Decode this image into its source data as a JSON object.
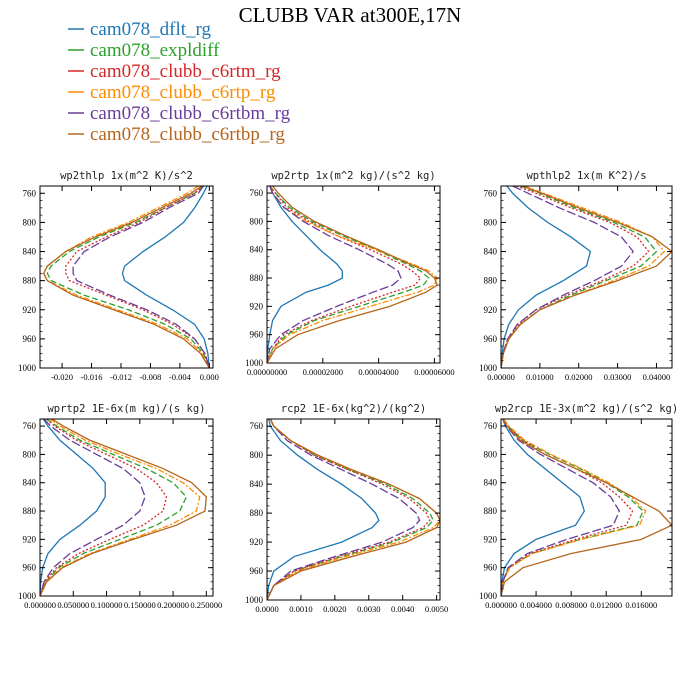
{
  "figure": {
    "title": "CLUBB VAR at300E,17N"
  },
  "legend": [
    {
      "name": "cam078_dflt_rg",
      "color": "#1f77b4",
      "dash": "solid"
    },
    {
      "name": "cam078_expldiff",
      "color": "#2ca02c",
      "dash": "dash"
    },
    {
      "name": "cam078_clubb_c6rtm_rg",
      "color": "#d62728",
      "dash": "dot"
    },
    {
      "name": "cam078_clubb_c6rtp_rg",
      "color": "#ff8c00",
      "dash": "dashdot"
    },
    {
      "name": "cam078_clubb_c6rtbm_rg",
      "color": "#6a3d9a",
      "dash": "longdash"
    },
    {
      "name": "cam078_clubb_c6rtbp_rg",
      "color": "#b5651d",
      "dash": "solid"
    }
  ],
  "chart_data": [
    {
      "type": "line",
      "title": "wp2thlp  1x(m^2 K)/s^2",
      "xlim": [
        -0.023,
        0.0005
      ],
      "ylim": [
        1000,
        750
      ],
      "xticks": [
        -0.02,
        -0.016,
        -0.012,
        -0.008,
        -0.004,
        0.0
      ],
      "xticklabels": [
        "-0.020",
        "-0.016",
        "-0.012",
        "-0.008",
        "-0.004",
        "0.000"
      ],
      "yticks": [
        760,
        800,
        840,
        880,
        920,
        960,
        1000
      ],
      "y": [
        750,
        760,
        780,
        800,
        820,
        840,
        860,
        870,
        880,
        900,
        920,
        940,
        960,
        980,
        1000
      ],
      "series": [
        {
          "values": [
            -0.0003,
            -0.0008,
            -0.002,
            -0.0035,
            -0.006,
            -0.009,
            -0.0115,
            -0.0118,
            -0.0115,
            -0.0085,
            -0.005,
            -0.002,
            -0.0007,
            -0.0002,
            0.0
          ]
        },
        {
          "values": [
            -0.0008,
            -0.002,
            -0.006,
            -0.01,
            -0.015,
            -0.019,
            -0.0215,
            -0.022,
            -0.0215,
            -0.017,
            -0.011,
            -0.006,
            -0.0025,
            -0.0008,
            0.0
          ]
        },
        {
          "values": [
            -0.0008,
            -0.002,
            -0.006,
            -0.0095,
            -0.014,
            -0.018,
            -0.0195,
            -0.0195,
            -0.019,
            -0.014,
            -0.009,
            -0.005,
            -0.002,
            -0.0006,
            0.0
          ]
        },
        {
          "values": [
            -0.0015,
            -0.003,
            -0.007,
            -0.011,
            -0.016,
            -0.0195,
            -0.022,
            -0.0225,
            -0.022,
            -0.018,
            -0.0125,
            -0.007,
            -0.003,
            -0.001,
            0.0
          ]
        },
        {
          "values": [
            -0.0008,
            -0.0015,
            -0.0055,
            -0.009,
            -0.0135,
            -0.017,
            -0.0185,
            -0.0185,
            -0.018,
            -0.0135,
            -0.0085,
            -0.0045,
            -0.002,
            -0.0006,
            0.0
          ]
        },
        {
          "values": [
            -0.001,
            -0.0025,
            -0.0065,
            -0.0105,
            -0.0155,
            -0.0195,
            -0.022,
            -0.0225,
            -0.022,
            -0.0185,
            -0.013,
            -0.0075,
            -0.0035,
            -0.0012,
            0.0
          ]
        }
      ]
    },
    {
      "type": "line",
      "title": "wp2rtp  1x(m^2 kg)/(s^2 kg)",
      "xlim": [
        0,
        6.2e-05
      ],
      "ylim": [
        1000,
        750
      ],
      "xticks": [
        0,
        2e-05,
        4e-05,
        6e-05
      ],
      "xticklabels": [
        "0.00000000",
        "0.00002000",
        "0.00004000",
        "0.00006000"
      ],
      "yticks": [
        760,
        800,
        840,
        880,
        920,
        960,
        1000
      ],
      "y": [
        750,
        760,
        780,
        800,
        820,
        840,
        860,
        870,
        880,
        890,
        900,
        920,
        940,
        960,
        980,
        1000
      ],
      "series": [
        {
          "values": [
            1e-06,
            2e-06,
            5e-06,
            9e-06,
            1.4e-05,
            1.9e-05,
            2.5e-05,
            2.7e-05,
            2.7e-05,
            2.2e-05,
            1.4e-05,
            5e-06,
            2e-06,
            1e-06,
            3e-07,
            0.0
          ]
        },
        {
          "values": [
            1e-06,
            3e-06,
            8e-06,
            1.6e-05,
            2.7e-05,
            3.9e-05,
            5e-05,
            5.5e-05,
            5.8e-05,
            5.6e-05,
            4.9e-05,
            3.3e-05,
            1.7e-05,
            7e-06,
            2e-06,
            0.0
          ]
        },
        {
          "values": [
            1e-06,
            3e-06,
            7e-06,
            1.5e-05,
            2.5e-05,
            3.7e-05,
            4.8e-05,
            5.2e-05,
            5.5e-05,
            5.3e-05,
            4.5e-05,
            3e-05,
            1.6e-05,
            6e-06,
            2e-06,
            0.0
          ]
        },
        {
          "values": [
            1e-06,
            2e-06,
            6e-06,
            1.4e-05,
            2.5e-05,
            3.9e-05,
            5.2e-05,
            5.8e-05,
            6.1e-05,
            6e-05,
            5.4e-05,
            3.7e-05,
            2e-05,
            8e-06,
            2e-06,
            0.0
          ]
        },
        {
          "values": [
            1e-06,
            2e-06,
            6e-06,
            1.3e-05,
            2.2e-05,
            3.3e-05,
            4.3e-05,
            4.7e-05,
            4.8e-05,
            4.5e-05,
            3.8e-05,
            2.5e-05,
            1.3e-05,
            5e-06,
            1e-06,
            0.0
          ]
        },
        {
          "values": [
            2e-06,
            4e-06,
            9e-06,
            1.7e-05,
            2.8e-05,
            4e-05,
            5.1e-05,
            5.7e-05,
            6e-05,
            6.1e-05,
            5.7e-05,
            4.4e-05,
            2.6e-05,
            1.1e-05,
            3e-06,
            0.0
          ]
        }
      ]
    },
    {
      "type": "line",
      "title": "wpthlp2  1x(m K^2)/s",
      "xlim": [
        0,
        0.044
      ],
      "ylim": [
        1000,
        750
      ],
      "xticks": [
        0,
        0.01,
        0.02,
        0.03,
        0.04
      ],
      "xticklabels": [
        "0.00000",
        "0.01000",
        "0.02000",
        "0.03000",
        "0.04000"
      ],
      "yticks": [
        760,
        800,
        840,
        880,
        920,
        960,
        1000
      ],
      "y": [
        750,
        760,
        780,
        800,
        820,
        840,
        860,
        880,
        900,
        920,
        940,
        960,
        980,
        1000
      ],
      "series": [
        {
          "values": [
            0.0015,
            0.003,
            0.007,
            0.012,
            0.018,
            0.023,
            0.022,
            0.016,
            0.009,
            0.0045,
            0.002,
            0.0008,
            0.0003,
            0.0
          ]
        },
        {
          "values": [
            0.005,
            0.01,
            0.019,
            0.029,
            0.037,
            0.04,
            0.036,
            0.027,
            0.018,
            0.01,
            0.005,
            0.002,
            0.0006,
            0.0
          ]
        },
        {
          "values": [
            0.004,
            0.009,
            0.018,
            0.028,
            0.035,
            0.038,
            0.034,
            0.026,
            0.017,
            0.009,
            0.0045,
            0.0018,
            0.0006,
            0.0
          ]
        },
        {
          "values": [
            0.006,
            0.011,
            0.021,
            0.031,
            0.039,
            0.042,
            0.038,
            0.029,
            0.019,
            0.01,
            0.005,
            0.002,
            0.0006,
            0.0
          ]
        },
        {
          "values": [
            0.003,
            0.007,
            0.015,
            0.024,
            0.031,
            0.034,
            0.031,
            0.024,
            0.016,
            0.009,
            0.0042,
            0.0017,
            0.0005,
            0.0
          ]
        },
        {
          "values": [
            0.0055,
            0.0105,
            0.02,
            0.03,
            0.039,
            0.044,
            0.04,
            0.03,
            0.019,
            0.01,
            0.005,
            0.002,
            0.0006,
            0.0
          ]
        }
      ]
    },
    {
      "type": "line",
      "title": "wprtp2  1E-6x(m kg)/(s kg)",
      "xlim": [
        0,
        0.26
      ],
      "ylim": [
        1000,
        750
      ],
      "xticks": [
        0,
        0.05,
        0.1,
        0.15,
        0.2,
        0.25
      ],
      "xticklabels": [
        "0.000000",
        "0.050000",
        "0.100000",
        "0.150000",
        "0.200000",
        "0.250000"
      ],
      "yticks": [
        760,
        800,
        840,
        880,
        920,
        960,
        1000
      ],
      "y": [
        750,
        760,
        780,
        800,
        820,
        840,
        860,
        880,
        900,
        920,
        940,
        960,
        980,
        1000
      ],
      "series": [
        {
          "values": [
            0.005,
            0.012,
            0.03,
            0.055,
            0.08,
            0.098,
            0.098,
            0.085,
            0.06,
            0.03,
            0.012,
            0.004,
            0.001,
            0.0
          ]
        },
        {
          "values": [
            0.01,
            0.025,
            0.06,
            0.11,
            0.16,
            0.2,
            0.22,
            0.21,
            0.175,
            0.12,
            0.065,
            0.028,
            0.008,
            0.0
          ]
        },
        {
          "values": [
            0.01,
            0.022,
            0.055,
            0.1,
            0.145,
            0.175,
            0.19,
            0.185,
            0.155,
            0.105,
            0.058,
            0.025,
            0.007,
            0.0
          ]
        },
        {
          "values": [
            0.015,
            0.03,
            0.068,
            0.12,
            0.175,
            0.215,
            0.24,
            0.235,
            0.195,
            0.135,
            0.075,
            0.032,
            0.009,
            0.0
          ]
        },
        {
          "values": [
            0.006,
            0.016,
            0.045,
            0.085,
            0.125,
            0.15,
            0.158,
            0.15,
            0.125,
            0.085,
            0.045,
            0.02,
            0.006,
            0.0
          ]
        },
        {
          "values": [
            0.018,
            0.035,
            0.075,
            0.13,
            0.185,
            0.228,
            0.25,
            0.248,
            0.205,
            0.14,
            0.078,
            0.034,
            0.01,
            0.0
          ]
        }
      ]
    },
    {
      "type": "line",
      "title": "rcp2  1E-6x(kg^2)/(kg^2)",
      "xlim": [
        0,
        0.0051
      ],
      "ylim": [
        1000,
        750
      ],
      "xticks": [
        0,
        0.001,
        0.002,
        0.003,
        0.004,
        0.005
      ],
      "xticklabels": [
        "0.0000",
        "0.0010",
        "0.0020",
        "0.0030",
        "0.0040",
        "0.0050"
      ],
      "yticks": [
        760,
        800,
        840,
        880,
        920,
        960,
        1000
      ],
      "y": [
        750,
        760,
        780,
        800,
        820,
        840,
        860,
        880,
        890,
        900,
        920,
        940,
        960,
        980,
        1000
      ],
      "series": [
        {
          "values": [
            5e-05,
            0.0001,
            0.0004,
            0.0009,
            0.0015,
            0.0022,
            0.0028,
            0.0032,
            0.0033,
            0.0031,
            0.0022,
            0.0008,
            0.0002,
            5e-05,
            0.0
          ]
        },
        {
          "values": [
            0.0001,
            0.0002,
            0.0007,
            0.0014,
            0.0024,
            0.0035,
            0.0043,
            0.0048,
            0.0049,
            0.0047,
            0.0037,
            0.0022,
            0.0008,
            0.0002,
            0.0
          ]
        },
        {
          "values": [
            0.0001,
            0.0002,
            0.0007,
            0.0014,
            0.0024,
            0.0034,
            0.0042,
            0.0047,
            0.0048,
            0.0046,
            0.0036,
            0.0021,
            0.0008,
            0.0002,
            0.0
          ]
        },
        {
          "values": [
            0.0001,
            0.0002,
            0.0007,
            0.0015,
            0.0025,
            0.0036,
            0.0045,
            0.005,
            0.0051,
            0.0049,
            0.0039,
            0.0023,
            0.0009,
            0.0002,
            0.0
          ]
        },
        {
          "values": [
            0.0001,
            0.0002,
            0.0006,
            0.0013,
            0.0022,
            0.0031,
            0.0039,
            0.0044,
            0.0045,
            0.0043,
            0.0034,
            0.002,
            0.0007,
            0.0002,
            0.0
          ]
        },
        {
          "values": [
            0.0001,
            0.0002,
            0.0007,
            0.0015,
            0.0025,
            0.0036,
            0.0045,
            0.005,
            0.0051,
            0.005,
            0.0041,
            0.0025,
            0.001,
            0.0002,
            0.0
          ]
        }
      ]
    },
    {
      "type": "line",
      "title": "wp2rcp  1E-3x(m^2 kg)/(s^2 kg)",
      "xlim": [
        0,
        0.0195
      ],
      "ylim": [
        1000,
        750
      ],
      "xticks": [
        0,
        0.004,
        0.008,
        0.012,
        0.016
      ],
      "xticklabels": [
        "0.000000",
        "0.004000",
        "0.008000",
        "0.012000",
        "0.016000"
      ],
      "yticks": [
        760,
        800,
        840,
        880,
        920,
        960,
        1000
      ],
      "y": [
        750,
        760,
        780,
        800,
        820,
        840,
        860,
        880,
        900,
        920,
        940,
        960,
        980,
        1000
      ],
      "series": [
        {
          "values": [
            0.0002,
            0.0005,
            0.0015,
            0.003,
            0.005,
            0.007,
            0.009,
            0.0095,
            0.0085,
            0.004,
            0.0015,
            0.0004,
            0.0001,
            0.0
          ]
        },
        {
          "values": [
            0.0003,
            0.0008,
            0.0025,
            0.0055,
            0.009,
            0.012,
            0.0145,
            0.0162,
            0.0155,
            0.009,
            0.0035,
            0.0009,
            0.0002,
            0.0
          ]
        },
        {
          "values": [
            0.0003,
            0.0008,
            0.0025,
            0.005,
            0.0085,
            0.0115,
            0.0135,
            0.015,
            0.0143,
            0.0085,
            0.0033,
            0.0009,
            0.0002,
            0.0
          ]
        },
        {
          "values": [
            0.0003,
            0.0009,
            0.0027,
            0.0057,
            0.0092,
            0.0123,
            0.0148,
            0.0165,
            0.0158,
            0.0092,
            0.0036,
            0.001,
            0.0002,
            0.0
          ]
        },
        {
          "values": [
            0.0002,
            0.0006,
            0.002,
            0.0045,
            0.0075,
            0.0105,
            0.0125,
            0.0135,
            0.0128,
            0.0075,
            0.003,
            0.0008,
            0.0002,
            0.0
          ]
        },
        {
          "values": [
            0.0002,
            0.0007,
            0.0022,
            0.005,
            0.0085,
            0.012,
            0.015,
            0.018,
            0.0195,
            0.016,
            0.008,
            0.0025,
            0.0004,
            0.0
          ]
        }
      ]
    }
  ]
}
